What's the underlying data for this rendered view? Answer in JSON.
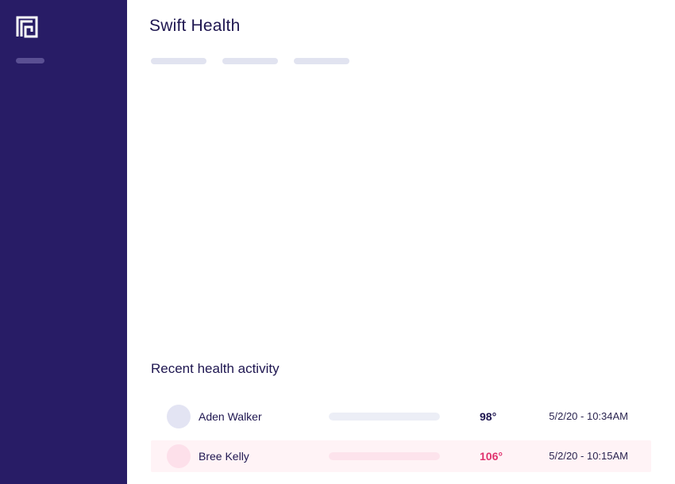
{
  "app": {
    "title": "Swift Health",
    "logo_icon": "maze-square-logo-icon",
    "colors": {
      "sidebar": "#281c66",
      "text": "#1e1650",
      "alert": "#e0336e",
      "neutral_track": "#eceef6",
      "alert_track": "#fde3ec"
    }
  },
  "tabs": [
    "",
    "",
    ""
  ],
  "activity": {
    "title": "Recent health activity",
    "rows": [
      {
        "name": "Aden Walker",
        "temperature": "98°",
        "timestamp": "5/2/20 - 10:34AM",
        "status": "normal",
        "avatar_color": "#e3e4f3",
        "bar_color": "#eceef6",
        "temp_color": "#1e1650",
        "level": 1.0
      },
      {
        "name": "Bree Kelly",
        "temperature": "106°",
        "timestamp": "5/2/20 - 10:15AM",
        "status": "alert",
        "avatar_color": "#fde0ea",
        "bar_color": "#fde3ec",
        "temp_color": "#e0336e",
        "level": 1.0
      }
    ]
  }
}
